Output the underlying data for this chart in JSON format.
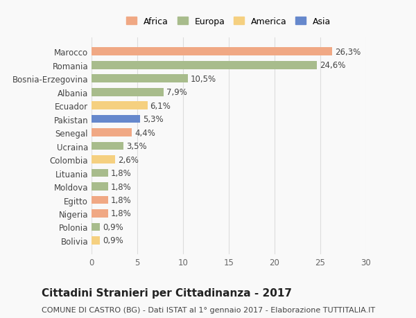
{
  "countries": [
    "Bolivia",
    "Polonia",
    "Nigeria",
    "Egitto",
    "Moldova",
    "Lituania",
    "Colombia",
    "Ucraina",
    "Senegal",
    "Pakistan",
    "Ecuador",
    "Albania",
    "Bosnia-Erzegovina",
    "Romania",
    "Marocco"
  ],
  "values": [
    0.9,
    0.9,
    1.8,
    1.8,
    1.8,
    1.8,
    2.6,
    3.5,
    4.4,
    5.3,
    6.1,
    7.9,
    10.5,
    24.6,
    26.3
  ],
  "labels": [
    "0,9%",
    "0,9%",
    "1,8%",
    "1,8%",
    "1,8%",
    "1,8%",
    "2,6%",
    "3,5%",
    "4,4%",
    "5,3%",
    "6,1%",
    "7,9%",
    "10,5%",
    "24,6%",
    "26,3%"
  ],
  "continents": [
    "America",
    "Europa",
    "Africa",
    "Africa",
    "Europa",
    "Europa",
    "America",
    "Europa",
    "Africa",
    "Asia",
    "America",
    "Europa",
    "Europa",
    "Europa",
    "Africa"
  ],
  "continent_colors": {
    "Africa": "#F0A884",
    "Europa": "#A8BC8C",
    "America": "#F5D080",
    "Asia": "#6688CC"
  },
  "legend_order": [
    "Africa",
    "Europa",
    "America",
    "Asia"
  ],
  "legend_colors": [
    "#F0A884",
    "#A8BC8C",
    "#F5D080",
    "#6688CC"
  ],
  "title": "Cittadini Stranieri per Cittadinanza - 2017",
  "subtitle": "COMUNE DI CASTRO (BG) - Dati ISTAT al 1° gennaio 2017 - Elaborazione TUTTITALIA.IT",
  "xlim": [
    0,
    30
  ],
  "xticks": [
    0,
    5,
    10,
    15,
    20,
    25,
    30
  ],
  "background_color": "#f9f9f9",
  "bar_height": 0.6,
  "grid_color": "#dddddd",
  "label_fontsize": 8.5,
  "tick_label_fontsize": 8.5,
  "title_fontsize": 11,
  "subtitle_fontsize": 8
}
